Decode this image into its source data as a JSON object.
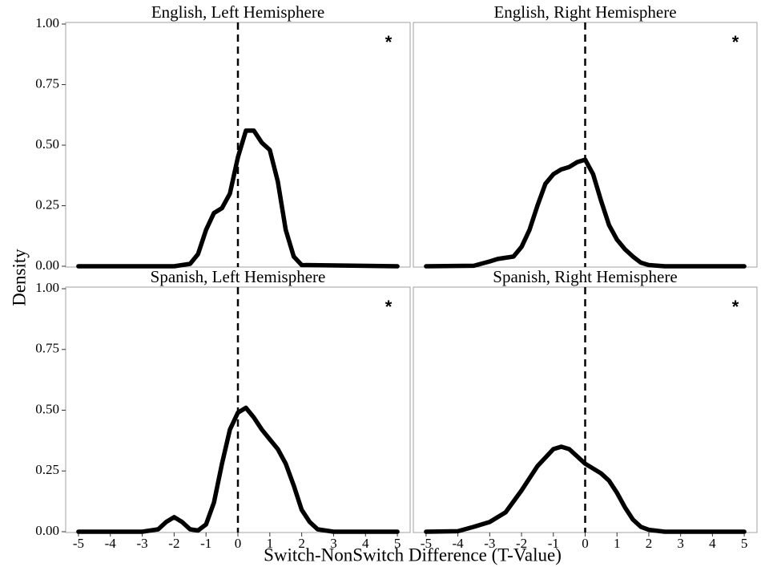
{
  "xlabel": "Switch-NonSwitch Difference (T-Value)",
  "ylabel": "Density",
  "chart_data": [
    {
      "type": "line",
      "title": "English, Left Hemisphere",
      "annotation": "*",
      "color": "#000000",
      "vline": 0,
      "xlim": [
        -5.4,
        5.4
      ],
      "ylim": [
        0,
        1.0
      ],
      "yticks": [
        {
          "value": 0,
          "label": "0.00"
        },
        {
          "value": 0.25,
          "label": "0.25"
        },
        {
          "value": 0.5,
          "label": "0.50"
        },
        {
          "value": 0.75,
          "label": "0.75"
        },
        {
          "value": 1,
          "label": "1.00"
        }
      ],
      "x": [
        -5,
        -2,
        -1.5,
        -1.25,
        -1,
        -0.75,
        -0.5,
        -0.25,
        0,
        0.25,
        0.5,
        0.75,
        1,
        1.25,
        1.5,
        1.75,
        2,
        5
      ],
      "values": [
        0,
        0,
        0.01,
        0.05,
        0.15,
        0.22,
        0.24,
        0.3,
        0.45,
        0.56,
        0.56,
        0.51,
        0.48,
        0.35,
        0.15,
        0.04,
        0.005,
        0
      ]
    },
    {
      "type": "line",
      "title": "English, Right Hemisphere",
      "annotation": "*",
      "color": "#000000",
      "vline": 0,
      "xlim": [
        -5.4,
        5.4
      ],
      "ylim": [
        0,
        1.0
      ],
      "x": [
        -5,
        -3.5,
        -3,
        -2.75,
        -2.5,
        -2.25,
        -2,
        -1.75,
        -1.5,
        -1.25,
        -1,
        -0.75,
        -0.5,
        -0.25,
        0,
        0.25,
        0.5,
        0.75,
        1,
        1.25,
        1.5,
        1.75,
        2,
        2.5,
        5
      ],
      "values": [
        0,
        0.002,
        0.02,
        0.03,
        0.035,
        0.04,
        0.08,
        0.15,
        0.25,
        0.34,
        0.38,
        0.4,
        0.41,
        0.43,
        0.44,
        0.38,
        0.27,
        0.17,
        0.11,
        0.07,
        0.04,
        0.015,
        0.005,
        0,
        0
      ]
    },
    {
      "type": "line",
      "title": "Spanish, Left Hemisphere",
      "annotation": "*",
      "color": "#000000",
      "vline": 0,
      "xlim": [
        -5.4,
        5.4
      ],
      "ylim": [
        0,
        1.0
      ],
      "yticks": [
        {
          "value": 0,
          "label": "0.00"
        },
        {
          "value": 0.25,
          "label": "0.25"
        },
        {
          "value": 0.5,
          "label": "0.50"
        },
        {
          "value": 0.75,
          "label": "0.75"
        },
        {
          "value": 1,
          "label": "1.00"
        }
      ],
      "xticks": [
        -5,
        -4,
        -3,
        -2,
        -1,
        0,
        1,
        2,
        3,
        4,
        5
      ],
      "x": [
        -5,
        -3,
        -2.5,
        -2.25,
        -2,
        -1.75,
        -1.5,
        -1.25,
        -1,
        -0.75,
        -0.5,
        -0.25,
        0,
        0.25,
        0.5,
        0.75,
        1,
        1.25,
        1.5,
        1.75,
        2,
        2.25,
        2.5,
        3,
        5
      ],
      "values": [
        0,
        0,
        0.01,
        0.04,
        0.06,
        0.04,
        0.01,
        0.005,
        0.03,
        0.12,
        0.28,
        0.42,
        0.49,
        0.51,
        0.47,
        0.42,
        0.38,
        0.34,
        0.28,
        0.19,
        0.09,
        0.04,
        0.01,
        0,
        0
      ]
    },
    {
      "type": "line",
      "title": "Spanish, Right Hemisphere",
      "annotation": "*",
      "color": "#000000",
      "vline": 0,
      "xlim": [
        -5.4,
        5.4
      ],
      "ylim": [
        0,
        1.0
      ],
      "xticks": [
        -5,
        -4,
        -3,
        -2,
        -1,
        0,
        1,
        2,
        3,
        4,
        5
      ],
      "x": [
        -5,
        -4,
        -3.5,
        -3,
        -2.5,
        -2,
        -1.5,
        -1,
        -0.75,
        -0.5,
        -0.25,
        0,
        0.25,
        0.5,
        0.75,
        1,
        1.25,
        1.5,
        1.75,
        2,
        2.5,
        5
      ],
      "values": [
        0,
        0.002,
        0.02,
        0.04,
        0.08,
        0.17,
        0.27,
        0.34,
        0.35,
        0.34,
        0.31,
        0.28,
        0.26,
        0.24,
        0.21,
        0.16,
        0.1,
        0.05,
        0.02,
        0.008,
        0,
        0
      ]
    }
  ]
}
